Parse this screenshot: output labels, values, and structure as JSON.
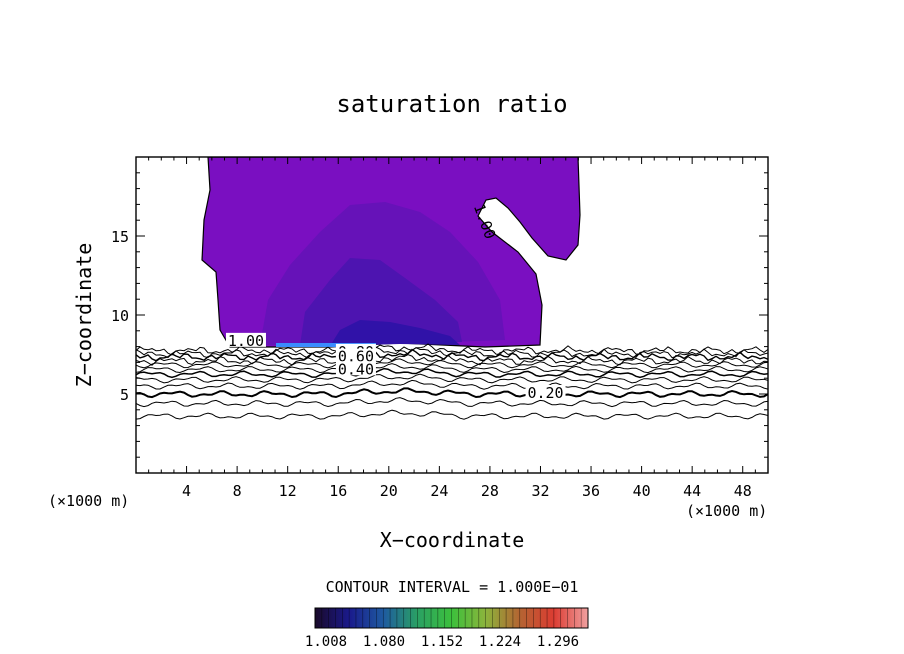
{
  "chart_data": {
    "type": "contour",
    "title": "saturation ratio",
    "xlabel": "X−coordinate",
    "ylabel": "Z−coordinate",
    "x_unit_left": "(×1000 m)",
    "x_unit_right": "(×1000 m)",
    "xlim": [
      0,
      50
    ],
    "ylim": [
      0,
      20
    ],
    "x_ticks": [
      4,
      8,
      12,
      16,
      20,
      24,
      28,
      32,
      36,
      40,
      44,
      48
    ],
    "y_ticks": [
      5,
      10,
      15
    ],
    "contour_labels": [
      {
        "text": "1.00",
        "x": 8.7,
        "z": 8.3
      },
      {
        "text": "1.00",
        "x": 27.5,
        "z": 15.9
      },
      {
        "text": "0.80",
        "x": 17.4,
        "z": 7.6
      },
      {
        "text": "0.60",
        "x": 17.4,
        "z": 7.3
      },
      {
        "text": "0.40",
        "x": 17.4,
        "z": 6.5
      },
      {
        "text": "0.20",
        "x": 32.4,
        "z": 5.0
      }
    ],
    "contour_interval_label": "CONTOUR INTERVAL = 1.000E−01",
    "colorbar": {
      "labels": [
        "1.008",
        "1.080",
        "1.152",
        "1.224",
        "1.296"
      ],
      "colors": [
        "#1a0a2a",
        "#1a1a8c",
        "#1e5aa0",
        "#2aa064",
        "#3cc03c",
        "#8cb43c",
        "#b46432",
        "#dc3c32",
        "#f0a0a0"
      ]
    },
    "fill_colors": {
      "base": "#7a0fc1",
      "mid": "#6612b8",
      "core": "#4d14b0",
      "deep": "#3012a8",
      "strip": "#3a8cff"
    }
  }
}
